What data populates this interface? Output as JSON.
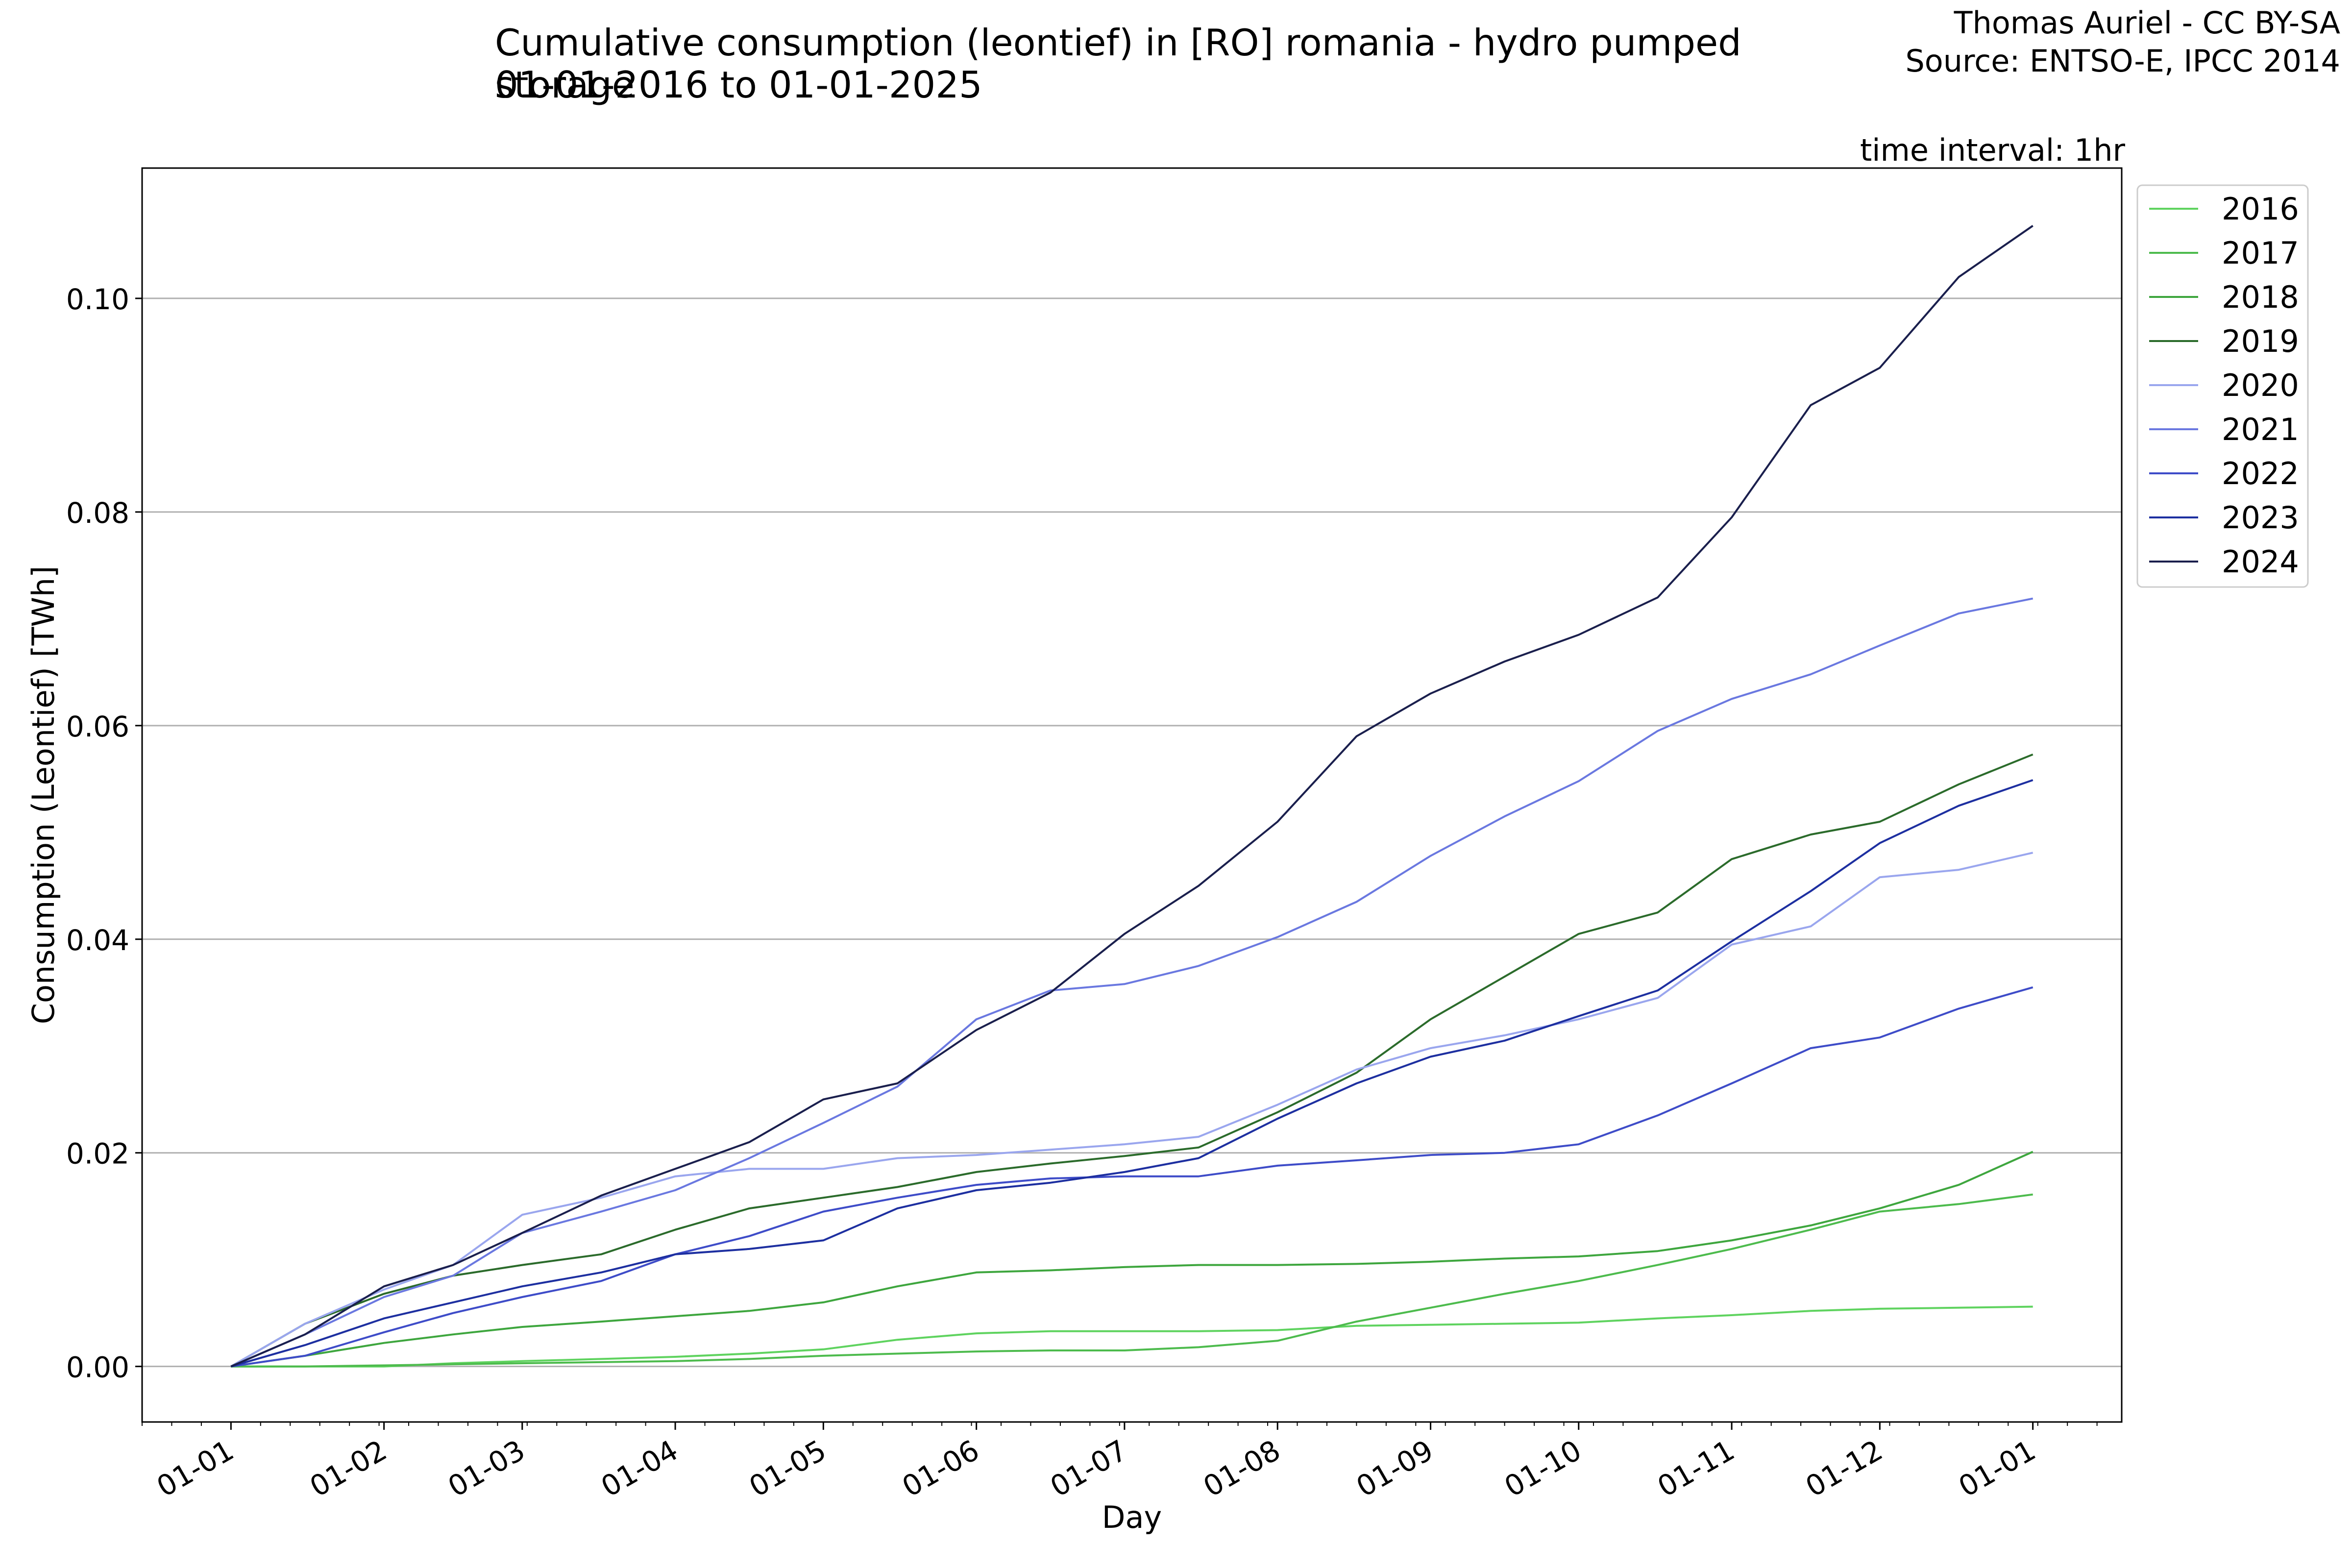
{
  "title": {
    "line1": "Cumulative consumption (leontief) in [RO] romania - hydro pumped storage",
    "line2": "01-01-2016 to 01-01-2025"
  },
  "credit": {
    "line1": "Thomas Auriel - CC BY-SA",
    "line2": "Source: ENTSO-E, IPCC 2014"
  },
  "annotation": "time interval: 1hr",
  "chart_data": {
    "type": "line",
    "title": "Cumulative consumption (leontief) in [RO] romania - hydro pumped storage",
    "subtitle": "01-01-2016 to 01-01-2025",
    "xlabel": "Day",
    "ylabel": "Consumption (Leontief) [TWh]",
    "x_tick_labels": [
      "01-01",
      "01-02",
      "01-03",
      "01-04",
      "01-05",
      "01-06",
      "01-07",
      "01-08",
      "01-09",
      "01-10",
      "01-11",
      "01-12",
      "01-01"
    ],
    "x_tick_days": [
      0,
      31,
      59,
      90,
      120,
      151,
      181,
      212,
      243,
      273,
      304,
      334,
      365
    ],
    "xlim": [
      -18,
      383
    ],
    "ylim": [
      -0.0052,
      0.1122
    ],
    "y_ticks": [
      0.0,
      0.02,
      0.04,
      0.06,
      0.08,
      0.1
    ],
    "y_tick_labels": [
      "0.00",
      "0.02",
      "0.04",
      "0.06",
      "0.08",
      "0.10"
    ],
    "grid": "horizontal",
    "legend_position": "outside-right-top",
    "x": [
      0,
      15,
      31,
      45,
      59,
      75,
      90,
      105,
      120,
      135,
      151,
      166,
      181,
      196,
      212,
      228,
      243,
      258,
      273,
      289,
      304,
      320,
      334,
      350,
      365
    ],
    "series": [
      {
        "name": "2016",
        "color": "#5fd35f",
        "values": [
          0,
          0,
          0,
          0.0003,
          0.0005,
          0.0007,
          0.0009,
          0.0012,
          0.0016,
          0.0025,
          0.0031,
          0.0033,
          0.0033,
          0.0033,
          0.0034,
          0.0038,
          0.0039,
          0.004,
          0.0041,
          0.0045,
          0.0048,
          0.0052,
          0.0054,
          0.0055,
          0.0056
        ]
      },
      {
        "name": "2017",
        "color": "#4dbb4d",
        "values": [
          0,
          0,
          0.0001,
          0.0002,
          0.0003,
          0.0004,
          0.0005,
          0.0007,
          0.001,
          0.0012,
          0.0014,
          0.0015,
          0.0015,
          0.0018,
          0.0024,
          0.0042,
          0.0055,
          0.0068,
          0.008,
          0.0095,
          0.011,
          0.0128,
          0.0145,
          0.0152,
          0.0161
        ]
      },
      {
        "name": "2018",
        "color": "#3ea63e",
        "values": [
          0,
          0.001,
          0.0022,
          0.003,
          0.0037,
          0.0042,
          0.0047,
          0.0052,
          0.006,
          0.0075,
          0.0088,
          0.009,
          0.0093,
          0.0095,
          0.0095,
          0.0096,
          0.0098,
          0.0101,
          0.0103,
          0.0108,
          0.0118,
          0.0132,
          0.0148,
          0.017,
          0.0201
        ]
      },
      {
        "name": "2019",
        "color": "#2b6b2b",
        "values": [
          0,
          0.004,
          0.0068,
          0.0085,
          0.0095,
          0.0105,
          0.0128,
          0.0148,
          0.0158,
          0.0168,
          0.0182,
          0.019,
          0.0197,
          0.0205,
          0.0238,
          0.0275,
          0.0325,
          0.0365,
          0.0405,
          0.0425,
          0.0475,
          0.0498,
          0.051,
          0.0545,
          0.0573
        ]
      },
      {
        "name": "2020",
        "color": "#9aa6ee",
        "values": [
          0,
          0.004,
          0.0072,
          0.0095,
          0.0142,
          0.0158,
          0.0178,
          0.0185,
          0.0185,
          0.0195,
          0.0198,
          0.0203,
          0.0208,
          0.0215,
          0.0245,
          0.0278,
          0.0298,
          0.031,
          0.0325,
          0.0345,
          0.0395,
          0.0412,
          0.0458,
          0.0465,
          0.0481
        ]
      },
      {
        "name": "2021",
        "color": "#6a78e0",
        "values": [
          0,
          0.003,
          0.0065,
          0.0085,
          0.0125,
          0.0145,
          0.0165,
          0.0195,
          0.0228,
          0.0262,
          0.0325,
          0.0352,
          0.0358,
          0.0375,
          0.0402,
          0.0435,
          0.0478,
          0.0515,
          0.0548,
          0.0595,
          0.0625,
          0.0648,
          0.0675,
          0.0705,
          0.0719
        ]
      },
      {
        "name": "2022",
        "color": "#3e4cc8",
        "values": [
          0,
          0.001,
          0.0032,
          0.005,
          0.0065,
          0.008,
          0.0105,
          0.0122,
          0.0145,
          0.0158,
          0.017,
          0.0176,
          0.0178,
          0.0178,
          0.0188,
          0.0193,
          0.0198,
          0.02,
          0.0208,
          0.0235,
          0.0265,
          0.0298,
          0.0308,
          0.0335,
          0.0355
        ]
      },
      {
        "name": "2023",
        "color": "#1d2fa0",
        "values": [
          0,
          0.002,
          0.0045,
          0.006,
          0.0075,
          0.0088,
          0.0105,
          0.011,
          0.0118,
          0.0148,
          0.0165,
          0.0172,
          0.0182,
          0.0195,
          0.0232,
          0.0265,
          0.029,
          0.0305,
          0.0328,
          0.0352,
          0.0398,
          0.0445,
          0.049,
          0.0525,
          0.0549
        ]
      },
      {
        "name": "2024",
        "color": "#1a1f4d",
        "values": [
          0,
          0.003,
          0.0075,
          0.0095,
          0.0125,
          0.016,
          0.0185,
          0.021,
          0.025,
          0.0265,
          0.0315,
          0.035,
          0.0405,
          0.045,
          0.051,
          0.059,
          0.063,
          0.066,
          0.0685,
          0.072,
          0.0795,
          0.09,
          0.0935,
          0.102,
          0.1068
        ]
      }
    ]
  }
}
